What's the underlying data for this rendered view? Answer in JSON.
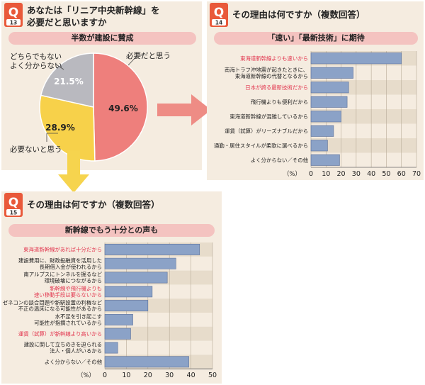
{
  "q13": {
    "badge_q": "Q",
    "badge_num": "13",
    "title_line1": "あなたは「リニア中央新幹線」を",
    "title_line2": "必要だと思いますか",
    "subtitle": "半数が建設に賛成",
    "chart_data": {
      "type": "pie",
      "slices": [
        {
          "label": "必要だと思う",
          "value": 49.6,
          "value_label": "49.6%",
          "color": "#ee7f7c"
        },
        {
          "label": "必要ないと思う",
          "value": 28.9,
          "value_label": "28.9%",
          "color": "#f7d14a"
        },
        {
          "label_line1": "どちらでもない",
          "label_line2": "よく分からない",
          "value": 21.5,
          "value_label": "21.5%",
          "color": "#b9b9bf"
        }
      ]
    }
  },
  "q14": {
    "badge_q": "Q",
    "badge_num": "14",
    "title": "その理由は何ですか（複数回答）",
    "subtitle": "「速い」「最新技術」に期待",
    "unit": "（%）",
    "chart_data": {
      "type": "bar",
      "orientation": "horizontal",
      "xlim": [
        0,
        70
      ],
      "ticks": [
        "0",
        "10",
        "20",
        "30",
        "40",
        "50",
        "60",
        "70"
      ],
      "categories": [
        {
          "lines": [
            "東海道新幹線よりも速いから"
          ],
          "value": 60,
          "highlight": true
        },
        {
          "lines": [
            "南海トラフ沖地震が起きたときに、",
            "東海道新幹線の代替となるから"
          ],
          "value": 28,
          "highlight": false
        },
        {
          "lines": [
            "日本が誇る最新技術だから"
          ],
          "value": 25,
          "highlight": true
        },
        {
          "lines": [
            "飛行機よりも便利だから"
          ],
          "value": 24,
          "highlight": false
        },
        {
          "lines": [
            "東海道新幹線が混雑しているから"
          ],
          "value": 20,
          "highlight": false
        },
        {
          "lines": [
            "運賃（試算）がリーズナブルだから"
          ],
          "value": 15,
          "highlight": false
        },
        {
          "lines": [
            "通勤・居住スタイルが柔軟に選べるから"
          ],
          "value": 11,
          "highlight": false
        },
        {
          "lines": [
            "よく分からない／その他"
          ],
          "value": 19,
          "highlight": false
        }
      ]
    }
  },
  "q15": {
    "badge_q": "Q",
    "badge_num": "15",
    "title": "その理由は何ですか（複数回答）",
    "subtitle": "新幹線でもう十分との声も",
    "unit": "（%）",
    "chart_data": {
      "type": "bar",
      "orientation": "horizontal",
      "xlim": [
        0,
        50
      ],
      "ticks": [
        "0",
        "10",
        "20",
        "30",
        "40",
        "50"
      ],
      "categories": [
        {
          "lines": [
            "東海道新幹線があれば十分だから"
          ],
          "value": 44,
          "highlight": true
        },
        {
          "lines": [
            "建設費用に、財政投融資を活用した",
            "長期借入金が使われるから"
          ],
          "value": 33,
          "highlight": false
        },
        {
          "lines": [
            "南アルプスにトンネルを掘るなど",
            "環境破壊につながるから"
          ],
          "value": 29,
          "highlight": false
        },
        {
          "lines": [
            "新幹線や飛行機よりも",
            "速い移動手段は要らないから"
          ],
          "value": 22,
          "highlight": true
        },
        {
          "lines": [
            "ゼネコンの談合問題や新駅設置の利権など",
            "不正の温床になる可能性があるから"
          ],
          "value": 20,
          "highlight": false
        },
        {
          "lines": [
            "水不足を引き起こす",
            "可能性が指摘されているから"
          ],
          "value": 13,
          "highlight": false
        },
        {
          "lines": [
            "運賃（試算）が新幹線より高いから"
          ],
          "value": 12,
          "highlight": true
        },
        {
          "lines": [
            "建設に関して立ちのきを迫られる",
            "法人・個人がいるから"
          ],
          "value": 6,
          "highlight": false
        },
        {
          "lines": [
            "よく分からない／その他"
          ],
          "value": 39,
          "highlight": false
        }
      ]
    }
  },
  "colors": {
    "panel": "#f5ece0",
    "badge": "#e9593a",
    "pill": "#f4c3c0",
    "arrow": "#ee8c85",
    "arrow_down": "#f6d44e",
    "bar": "#8ba2c7",
    "bar_edge": "#5a6f99",
    "band": "#e7dccb",
    "highlight_text": "#e2344d"
  }
}
